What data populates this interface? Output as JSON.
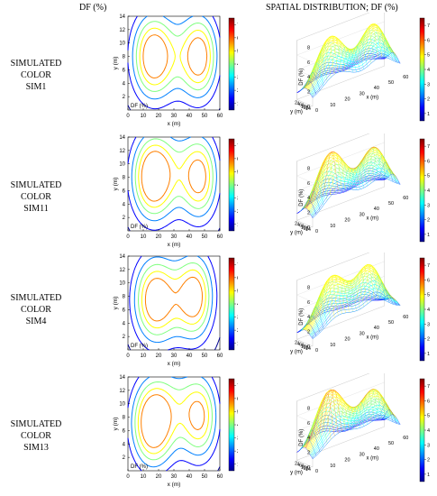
{
  "header": {
    "left": "DF (%)",
    "right": "SPATIAL DISTRIBUTION; DF (%)"
  },
  "rows": [
    {
      "label_line1": "SIMULATED COLOR",
      "label_line2": "SIM1"
    },
    {
      "label_line1": "SIMULATED COLOR",
      "label_line2": "SIM11"
    },
    {
      "label_line1": "SIMULATED COLOR",
      "label_line2": "SIM4"
    },
    {
      "label_line1": "SIMULATED COLOR",
      "label_line2": "SIM13"
    }
  ],
  "chart_data": {
    "type": "heatmap",
    "contour": {
      "xlabel": "x (m)",
      "ylabel": "y (m)",
      "inset_label": "DF (%)",
      "xlim": [
        0,
        60
      ],
      "ylim": [
        0,
        14
      ],
      "xticks": [
        "0",
        "10",
        "20",
        "30",
        "40",
        "50",
        "60"
      ],
      "yticks": [
        "2",
        "4",
        "6",
        "8",
        "10",
        "12",
        "14"
      ],
      "colorbar_ticks": [
        "1",
        "2",
        "3",
        "4",
        "5",
        "6",
        "7"
      ],
      "colorbar_range": [
        0.5,
        7.5
      ],
      "levels": [
        1,
        2,
        3,
        4,
        5,
        6,
        7
      ]
    },
    "surface": {
      "zlabel": "DF (%)",
      "xlabel": "x (m)",
      "ylabel": "y (m)",
      "zticks": [
        "0",
        "2",
        "4",
        "6",
        "8"
      ],
      "yticks": [
        "14",
        "12",
        "10",
        "8",
        "6",
        "4",
        "2"
      ],
      "xticks": [
        "0",
        "10",
        "20",
        "30",
        "40",
        "50",
        "60"
      ],
      "colorbar_ticks": [
        "1",
        "2",
        "3",
        "4",
        "5",
        "6",
        "7"
      ]
    },
    "colormap": [
      "#00008f",
      "#0000ff",
      "#0080ff",
      "#00ffff",
      "#80ff80",
      "#ffff00",
      "#ff8000",
      "#ff0000",
      "#800000"
    ]
  }
}
